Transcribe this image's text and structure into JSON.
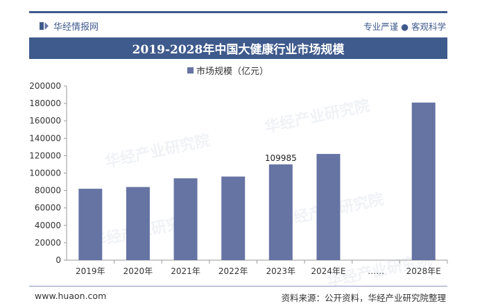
{
  "header": {
    "brand": "华经情报网",
    "slogan": "专业严谨 ● 客观科学",
    "title": "2019-2028年中国大健康行业市场规模"
  },
  "footer": {
    "website": "www.huaon.com",
    "source": "资料来源：公开资料，华经产业研究院整理"
  },
  "watermarks": [
    "华经产业研究院",
    "华经产业研究院",
    "华经产业研究院",
    "华经产业研究院",
    "华经产业研究院"
  ],
  "colors": {
    "primary": "#3f5a8c",
    "bar": "#6674a3"
  },
  "chart_data": {
    "type": "bar",
    "categories": [
      "2019年",
      "2020年",
      "2021年",
      "2022年",
      "2023年",
      "2024年E",
      "……",
      "2028年E"
    ],
    "series": [
      {
        "name": "市场规模（亿元）",
        "values": [
          82000,
          84000,
          94000,
          96000,
          109985,
          122000,
          null,
          181000
        ]
      }
    ],
    "data_labels": [
      {
        "category": "2023年",
        "text": "109985"
      }
    ],
    "yticks": [
      "0",
      "20000",
      "40000",
      "60000",
      "80000",
      "100000",
      "120000",
      "140000",
      "160000",
      "180000",
      "200000"
    ],
    "ylim": [
      0,
      200000
    ],
    "legend": "top-center",
    "grid": false
  }
}
